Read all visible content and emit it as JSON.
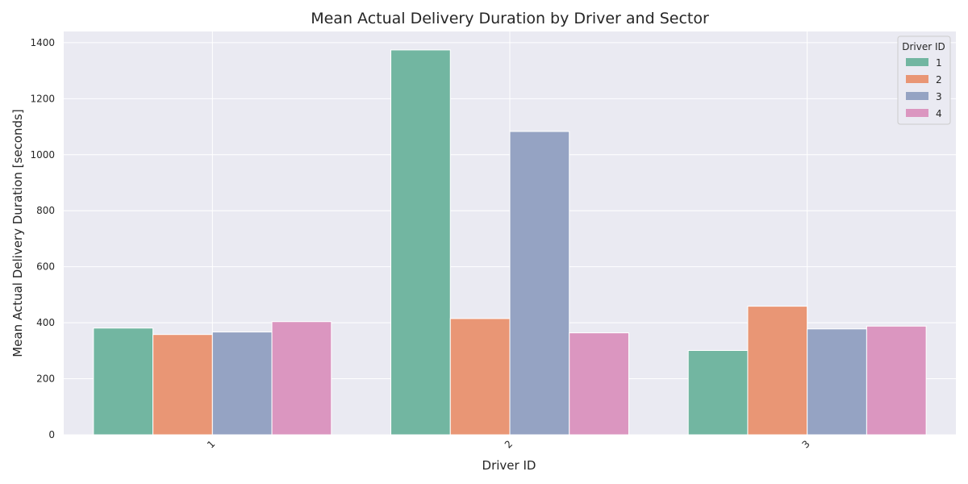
{
  "chart_data": {
    "type": "bar",
    "title": "Mean Actual Delivery Duration by Driver and Sector",
    "xlabel": "Driver ID",
    "ylabel": "Mean Actual Delivery Duration [seconds]",
    "categories": [
      "1",
      "2",
      "3"
    ],
    "ylim": [
      0,
      1440
    ],
    "yticks": [
      0,
      200,
      400,
      600,
      800,
      1000,
      1200,
      1400
    ],
    "grid": true,
    "legend": {
      "title": "Driver ID",
      "placement": "top-right"
    },
    "series": [
      {
        "name": "1",
        "color": "#72b6a1",
        "values": [
          381,
          1374,
          301
        ]
      },
      {
        "name": "2",
        "color": "#e99675",
        "values": [
          358,
          415,
          459
        ]
      },
      {
        "name": "3",
        "color": "#95a3c3",
        "values": [
          367,
          1083,
          378
        ]
      },
      {
        "name": "4",
        "color": "#db96c0",
        "values": [
          404,
          364,
          388
        ]
      }
    ]
  }
}
